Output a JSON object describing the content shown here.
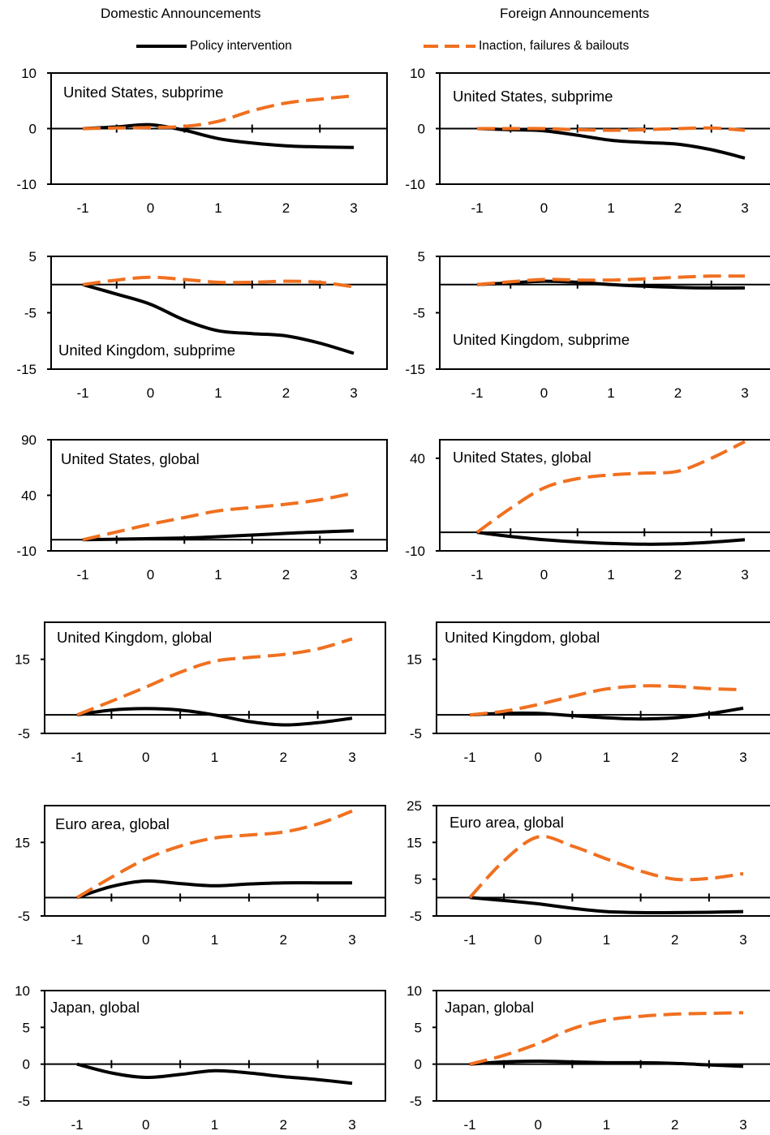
{
  "headers": {
    "left": "Domestic Announcements",
    "right": "Foreign Announcements"
  },
  "legend": {
    "policy": "Policy intervention",
    "inaction": "Inaction, failures & bailouts"
  },
  "colors": {
    "policy": "#000000",
    "inaction": "#f07020"
  },
  "chart_data": [
    {
      "type": "line",
      "title": "United States, subprime",
      "column": "Domestic",
      "ylim": [
        -10,
        10
      ],
      "yticks": [
        10,
        0,
        -10
      ],
      "xlim": [
        -1,
        3
      ],
      "xticks": [
        -1,
        0,
        1,
        2,
        3
      ],
      "series": [
        {
          "key": "policy",
          "x": [
            -1,
            -0.5,
            0,
            0.5,
            1,
            1.5,
            2,
            2.5,
            3
          ],
          "y": [
            0,
            0.3,
            0.7,
            -0.3,
            -1.8,
            -2.6,
            -3.1,
            -3.3,
            -3.4
          ]
        },
        {
          "key": "inaction",
          "x": [
            -1,
            -0.5,
            0,
            0.5,
            1,
            1.5,
            2,
            2.5,
            3
          ],
          "y": [
            0,
            0.1,
            0.2,
            0.4,
            1.3,
            3.2,
            4.6,
            5.3,
            5.9
          ]
        }
      ]
    },
    {
      "type": "line",
      "title": "United States, subprime",
      "column": "Foreign",
      "ylim": [
        -10,
        10
      ],
      "yticks": [
        10,
        0,
        -10
      ],
      "xlim": [
        -1,
        3
      ],
      "xticks": [
        -1,
        0,
        1,
        2,
        3
      ],
      "series": [
        {
          "key": "policy",
          "x": [
            -1,
            -0.5,
            0,
            0.5,
            1,
            1.5,
            2,
            2.5,
            3
          ],
          "y": [
            0,
            -0.2,
            -0.4,
            -1.2,
            -2.1,
            -2.5,
            -2.8,
            -3.8,
            -5.3
          ]
        },
        {
          "key": "inaction",
          "x": [
            -1,
            -0.5,
            0,
            0.5,
            1,
            1.5,
            2,
            2.5,
            3
          ],
          "y": [
            0,
            0,
            0,
            -0.2,
            -0.3,
            -0.2,
            0,
            0.1,
            -0.3
          ]
        }
      ]
    },
    {
      "type": "line",
      "title": "United Kingdom, subprime",
      "column": "Domestic",
      "ylim": [
        -15,
        5
      ],
      "yticks": [
        5,
        -5,
        -15
      ],
      "xlim": [
        -1,
        3
      ],
      "xticks": [
        -1,
        0,
        1,
        2,
        3
      ],
      "series": [
        {
          "key": "policy",
          "x": [
            -1,
            -0.5,
            0,
            0.5,
            1,
            1.5,
            2,
            2.5,
            3
          ],
          "y": [
            0,
            -1.7,
            -3.5,
            -6.3,
            -8.2,
            -8.7,
            -9.1,
            -10.4,
            -12.2
          ]
        },
        {
          "key": "inaction",
          "x": [
            -1,
            -0.5,
            0,
            0.5,
            1,
            1.5,
            2,
            2.5,
            3
          ],
          "y": [
            0,
            0.8,
            1.3,
            0.9,
            0.4,
            0.4,
            0.6,
            0.4,
            -0.4
          ]
        }
      ]
    },
    {
      "type": "line",
      "title": "United Kingdom, subprime",
      "column": "Foreign",
      "ylim": [
        -15,
        5
      ],
      "yticks": [
        5,
        -5,
        -15
      ],
      "xlim": [
        -1,
        3
      ],
      "xticks": [
        -1,
        0,
        1,
        2,
        3
      ],
      "series": [
        {
          "key": "policy",
          "x": [
            -1,
            -0.5,
            0,
            0.5,
            1,
            1.5,
            2,
            2.5,
            3
          ],
          "y": [
            0,
            0.3,
            0.6,
            0.4,
            0,
            -0.3,
            -0.5,
            -0.6,
            -0.6
          ]
        },
        {
          "key": "inaction",
          "x": [
            -1,
            -0.5,
            0,
            0.5,
            1,
            1.5,
            2,
            2.5,
            3
          ],
          "y": [
            0,
            0.5,
            0.9,
            0.8,
            0.8,
            1,
            1.3,
            1.5,
            1.5
          ]
        }
      ]
    },
    {
      "type": "line",
      "title": "United States, global",
      "column": "Domestic",
      "ylim": [
        -10,
        90
      ],
      "yticks": [
        90,
        40,
        -10
      ],
      "xlim": [
        -1,
        3
      ],
      "xticks": [
        -1,
        0,
        1,
        2,
        3
      ],
      "series": [
        {
          "key": "policy",
          "x": [
            -1,
            -0.5,
            0,
            0.5,
            1,
            1.5,
            2,
            2.5,
            3
          ],
          "y": [
            0,
            0.5,
            1,
            1.6,
            2.8,
            4.2,
            5.8,
            7,
            8
          ]
        },
        {
          "key": "inaction",
          "x": [
            -1,
            -0.5,
            0,
            0.5,
            1,
            1.5,
            2,
            2.5,
            3
          ],
          "y": [
            0,
            7,
            14,
            20,
            26,
            29,
            32,
            36,
            42
          ]
        }
      ]
    },
    {
      "type": "line",
      "title": "United States, global",
      "column": "Foreign",
      "ylim": [
        -10,
        50
      ],
      "yticks": [
        40,
        -10
      ],
      "xlim": [
        -1,
        3
      ],
      "xticks": [
        -1,
        0,
        1,
        2,
        3
      ],
      "series": [
        {
          "key": "policy",
          "x": [
            -1,
            -0.5,
            0,
            0.5,
            1,
            1.5,
            2,
            2.5,
            3
          ],
          "y": [
            0,
            -2.2,
            -4,
            -5.2,
            -6,
            -6.4,
            -6.2,
            -5.3,
            -4
          ]
        },
        {
          "key": "inaction",
          "x": [
            -1,
            -0.5,
            0,
            0.5,
            1,
            1.5,
            2,
            2.5,
            3
          ],
          "y": [
            0,
            13,
            24,
            29,
            31,
            32,
            33,
            40,
            49
          ]
        }
      ]
    },
    {
      "type": "line",
      "title": "United Kingdom, global",
      "column": "Domestic",
      "ylim": [
        -5,
        25
      ],
      "yticks": [
        15,
        -5
      ],
      "xlim": [
        -1,
        3
      ],
      "xticks": [
        -1,
        0,
        1,
        2,
        3
      ],
      "series": [
        {
          "key": "policy",
          "x": [
            -1,
            -0.5,
            0,
            0.5,
            1,
            1.5,
            2,
            2.5,
            3
          ],
          "y": [
            0,
            1.3,
            1.7,
            1.3,
            0,
            -1.8,
            -2.7,
            -2.1,
            -0.9
          ]
        },
        {
          "key": "inaction",
          "x": [
            -1,
            -0.5,
            0,
            0.5,
            1,
            1.5,
            2,
            2.5,
            3
          ],
          "y": [
            0,
            3.7,
            7.5,
            11.5,
            14.5,
            15.5,
            16.3,
            17.8,
            20.5
          ]
        }
      ]
    },
    {
      "type": "line",
      "title": "United Kingdom, global",
      "column": "Foreign",
      "ylim": [
        -5,
        25
      ],
      "yticks": [
        15,
        -5
      ],
      "xlim": [
        -1,
        3
      ],
      "xticks": [
        -1,
        0,
        1,
        2,
        3
      ],
      "series": [
        {
          "key": "policy",
          "x": [
            -1,
            -0.5,
            0,
            0.5,
            1,
            1.5,
            2,
            2.5,
            3
          ],
          "y": [
            0,
            0.4,
            0.4,
            -0.2,
            -0.8,
            -1.1,
            -0.8,
            0.3,
            1.8
          ]
        },
        {
          "key": "inaction",
          "x": [
            -1,
            -0.5,
            0,
            0.5,
            1,
            1.5,
            2,
            2.5,
            3
          ],
          "y": [
            0,
            1,
            2.8,
            5,
            7,
            7.8,
            7.7,
            7.1,
            6.8
          ]
        }
      ]
    },
    {
      "type": "line",
      "title": "Euro area,  global",
      "column": "Domestic",
      "ylim": [
        -5,
        25
      ],
      "yticks": [
        15,
        -5
      ],
      "xlim": [
        -1,
        3
      ],
      "xticks": [
        -1,
        0,
        1,
        2,
        3
      ],
      "series": [
        {
          "key": "policy",
          "x": [
            -1,
            -0.5,
            0,
            0.5,
            1,
            1.5,
            2,
            2.5,
            3
          ],
          "y": [
            0,
            3,
            4.5,
            3.8,
            3.2,
            3.7,
            4,
            4,
            4
          ]
        },
        {
          "key": "inaction",
          "x": [
            -1,
            -0.5,
            0,
            0.5,
            1,
            1.5,
            2,
            2.5,
            3
          ],
          "y": [
            0,
            5.5,
            10.5,
            14,
            16.2,
            17,
            17.8,
            20,
            23.5
          ]
        }
      ]
    },
    {
      "type": "line",
      "title": "Euro area,  global",
      "column": "Foreign",
      "ylim": [
        -5,
        25
      ],
      "yticks": [
        25,
        15,
        5,
        -5
      ],
      "xlim": [
        -1,
        3
      ],
      "xticks": [
        -1,
        0,
        1,
        2,
        3
      ],
      "series": [
        {
          "key": "policy",
          "x": [
            -1,
            -0.5,
            0,
            0.5,
            1,
            1.5,
            2,
            2.5,
            3
          ],
          "y": [
            0,
            -0.8,
            -1.7,
            -2.9,
            -3.8,
            -4.1,
            -4.1,
            -4,
            -3.8
          ]
        },
        {
          "key": "inaction",
          "x": [
            -1,
            -0.5,
            0,
            0.5,
            1,
            1.5,
            2,
            2.5,
            3
          ],
          "y": [
            0,
            10,
            16.5,
            14,
            10.5,
            7.2,
            5,
            5.2,
            6.5
          ]
        }
      ]
    },
    {
      "type": "line",
      "title": "Japan, global",
      "column": "Domestic",
      "ylim": [
        -5,
        10
      ],
      "yticks": [
        10,
        5,
        0,
        -5
      ],
      "xlim": [
        -1,
        3
      ],
      "xticks": [
        -1,
        0,
        1,
        2,
        3
      ],
      "series": [
        {
          "key": "policy",
          "x": [
            -1,
            -0.5,
            0,
            0.5,
            1,
            1.5,
            2,
            2.5,
            3
          ],
          "y": [
            0,
            -1.2,
            -1.8,
            -1.4,
            -0.9,
            -1.2,
            -1.7,
            -2.1,
            -2.6
          ]
        }
      ]
    },
    {
      "type": "line",
      "title": "Japan, global",
      "column": "Foreign",
      "ylim": [
        -5,
        10
      ],
      "yticks": [
        10,
        5,
        0,
        -5
      ],
      "xlim": [
        -1,
        3
      ],
      "xticks": [
        -1,
        0,
        1,
        2,
        3
      ],
      "series": [
        {
          "key": "policy",
          "x": [
            -1,
            -0.5,
            0,
            0.5,
            1,
            1.5,
            2,
            2.5,
            3
          ],
          "y": [
            0,
            0.3,
            0.4,
            0.3,
            0.2,
            0.2,
            0.1,
            -0.1,
            -0.3
          ]
        },
        {
          "key": "inaction",
          "x": [
            -1,
            -0.5,
            0,
            0.5,
            1,
            1.5,
            2,
            2.5,
            3
          ],
          "y": [
            0,
            1.2,
            2.8,
            4.8,
            6,
            6.5,
            6.8,
            6.9,
            7
          ]
        }
      ]
    }
  ]
}
